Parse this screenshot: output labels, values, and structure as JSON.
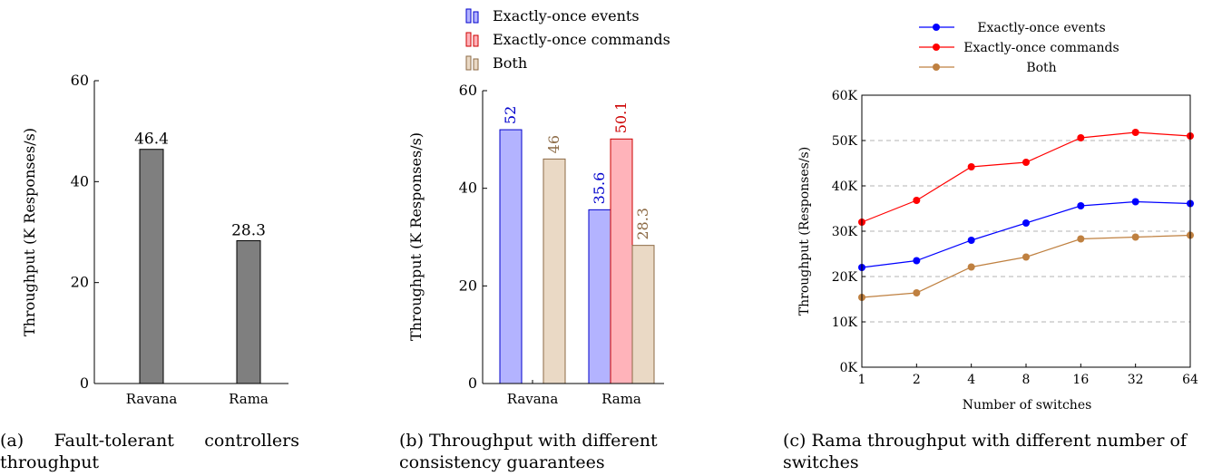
{
  "charts": [
    {
      "id": "a",
      "caption": "(a) Fault-tolerant controllers throughput",
      "chart_data": {
        "type": "bar",
        "categories": [
          "Ravana",
          "Rama"
        ],
        "values": [
          46.4,
          28.3
        ],
        "value_labels": [
          "46.4",
          "28.3"
        ],
        "ylabel": "Throughput (K Responses/s)",
        "ylim": [
          0,
          60
        ],
        "yticks": [
          "0",
          "20",
          "40",
          "60"
        ],
        "grid": false,
        "colors": {
          "bar": "#7f7f7f",
          "stroke": "#000000"
        }
      }
    },
    {
      "id": "b",
      "caption": "(b) Throughput with different consistency guarantees",
      "chart_data": {
        "type": "bar",
        "categories": [
          "Ravana",
          "Rama"
        ],
        "series": [
          {
            "name": "Exactly-once events",
            "values": [
              52,
              35.6
            ],
            "value_labels": [
              "52",
              "35.6"
            ],
            "fill": "#b3b3ff",
            "stroke": "#0000cc",
            "label_color": "#0000cc"
          },
          {
            "name": "Exactly-once commands",
            "values": [
              null,
              50.1
            ],
            "value_labels": [
              "",
              "50.1"
            ],
            "fill": "#ffb3ba",
            "stroke": "#cc0000",
            "label_color": "#cc0000"
          },
          {
            "name": "Both",
            "values": [
              46,
              28.3
            ],
            "value_labels": [
              "46",
              "28.3"
            ],
            "fill": "#ead9c5",
            "stroke": "#8c6a45",
            "label_color": "#8c6a45"
          }
        ],
        "ylabel": "Throughput (K Responses/s)",
        "ylim": [
          0,
          60
        ],
        "yticks": [
          "0",
          "20",
          "40",
          "60"
        ],
        "grid": false,
        "legend": "top"
      }
    },
    {
      "id": "c",
      "caption": "(c) Rama throughput with different number of switches",
      "chart_data": {
        "type": "line",
        "x": [
          "1",
          "2",
          "4",
          "8",
          "16",
          "32",
          "64"
        ],
        "series": [
          {
            "name": "Exactly-once events",
            "values": [
              22000,
              23500,
              28000,
              31800,
              35600,
              36500,
              36100
            ],
            "color": "#0000ff"
          },
          {
            "name": "Exactly-once commands",
            "values": [
              32000,
              36800,
              44200,
              45200,
              50600,
              51800,
              51000
            ],
            "color": "#ff0000"
          },
          {
            "name": "Both",
            "values": [
              15400,
              16400,
              22100,
              24300,
              28300,
              28700,
              29100
            ],
            "color": "#bf8040"
          }
        ],
        "xlabel": "Number of switches",
        "ylabel": "Throughput (Responses/s)",
        "ylim": [
          0,
          60000
        ],
        "yticks": [
          "0K",
          "10K",
          "20K",
          "30K",
          "40K",
          "50K",
          "60K"
        ],
        "x_scale": "log2",
        "grid": "horizontal-dashed",
        "legend": "top"
      }
    }
  ]
}
